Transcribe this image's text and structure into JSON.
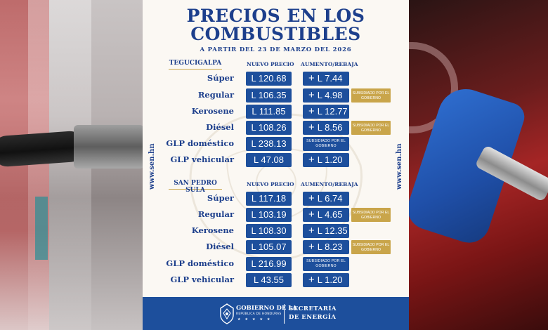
{
  "header": {
    "title_line1": "PRECIOS EN LOS",
    "title_line2": "COMBUSTIBLES",
    "subtitle": "A PARTIR DEL 23 DE MARZO DEL 2026"
  },
  "side_url": "www.sen.hn",
  "columns": {
    "new_price": "NUEVO PRECIO",
    "change": "AUMENTO/REBAJA"
  },
  "sections": [
    {
      "city": "TEGUCIGALPA",
      "rows": [
        {
          "fuel": "Súper",
          "price": "L 120.68",
          "sign": "+",
          "change": "L 7.44",
          "note": ""
        },
        {
          "fuel": "Regular",
          "price": "L 106.35",
          "sign": "+",
          "change": "L 4.98",
          "note": "SUBSIDIADO POR EL GOBIERNO"
        },
        {
          "fuel": "Kerosene",
          "price": "L 111.85",
          "sign": "+",
          "change": "L 12.77",
          "note": ""
        },
        {
          "fuel": "Diésel",
          "price": "L 108.26",
          "sign": "+",
          "change": "L 8.56",
          "note": "SUBSIDIADO POR EL GOBIERNO"
        },
        {
          "fuel": "GLP doméstico",
          "price": "L 238.13",
          "sign": "",
          "change": "SUBSIDIADO POR EL GOBIERNO",
          "note": ""
        },
        {
          "fuel": "GLP vehicular",
          "price": "L 47.08",
          "sign": "+",
          "change": "L 1.20",
          "note": ""
        }
      ]
    },
    {
      "city": "SAN PEDRO SULA",
      "rows": [
        {
          "fuel": "Súper",
          "price": "L 117.18",
          "sign": "+",
          "change": "L 6.74",
          "note": ""
        },
        {
          "fuel": "Regular",
          "price": "L 103.19",
          "sign": "+",
          "change": "L 4.65",
          "note": "SUBSIDIADO POR EL GOBIERNO"
        },
        {
          "fuel": "Kerosene",
          "price": "L 108.30",
          "sign": "+",
          "change": "L 12.35",
          "note": ""
        },
        {
          "fuel": "Diésel",
          "price": "L 105.07",
          "sign": "+",
          "change": "L 8.23",
          "note": "SUBSIDIADO POR EL GOBIERNO"
        },
        {
          "fuel": "GLP doméstico",
          "price": "L 216.99",
          "sign": "",
          "change": "SUBSIDIADO POR EL GOBIERNO",
          "note": ""
        },
        {
          "fuel": "GLP vehicular",
          "price": "L 43.55",
          "sign": "+",
          "change": "L 1.20",
          "note": ""
        }
      ]
    }
  ],
  "footer": {
    "gov_line1": "GOBIERNO DE LA",
    "gov_line2": "REPÚBLICA DE HONDURAS",
    "secretaria": "SECRETARÍA",
    "energia": "DE ENERGÍA"
  },
  "colors": {
    "brand_blue": "#1d4f9c",
    "title_blue": "#1d3f8c",
    "gold": "#c9a54a",
    "paper": "#fbf8f3"
  }
}
